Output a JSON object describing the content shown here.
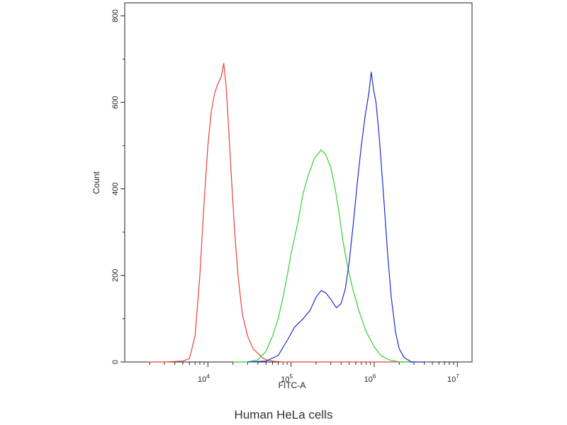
{
  "chart_data": {
    "type": "line",
    "xlabel": "FITC-A",
    "ylabel": "Count",
    "caption": "Human HeLa cells",
    "x_scale": "log",
    "xlim": [
      1000,
      15000000
    ],
    "ylim": [
      0,
      830
    ],
    "x_ticks": [
      {
        "value": 10000,
        "base": "10",
        "exp": "4"
      },
      {
        "value": 100000,
        "base": "10",
        "exp": "5"
      },
      {
        "value": 1000000,
        "base": "10",
        "exp": "6"
      },
      {
        "value": 10000000,
        "base": "10",
        "exp": "7"
      }
    ],
    "y_ticks": [
      "0",
      "200",
      "400",
      "600",
      "800"
    ],
    "series": [
      {
        "color": "#e8403a",
        "points": [
          [
            1900,
            0
          ],
          [
            3000,
            0
          ],
          [
            5000,
            2
          ],
          [
            6000,
            8
          ],
          [
            7000,
            60
          ],
          [
            8000,
            200
          ],
          [
            9000,
            370
          ],
          [
            10000,
            500
          ],
          [
            11000,
            580
          ],
          [
            12000,
            620
          ],
          [
            13000,
            640
          ],
          [
            14500,
            660
          ],
          [
            15500,
            690
          ],
          [
            16500,
            640
          ],
          [
            17500,
            560
          ],
          [
            19000,
            440
          ],
          [
            21000,
            300
          ],
          [
            23000,
            200
          ],
          [
            26000,
            110
          ],
          [
            30000,
            60
          ],
          [
            35000,
            30
          ],
          [
            40000,
            20
          ],
          [
            45000,
            10
          ],
          [
            50000,
            5
          ],
          [
            60000,
            2
          ],
          [
            80000,
            0
          ],
          [
            200000,
            0
          ],
          [
            1000000,
            0
          ],
          [
            3000000,
            0
          ]
        ]
      },
      {
        "color": "#2ed12e",
        "points": [
          [
            20000,
            0
          ],
          [
            30000,
            0
          ],
          [
            40000,
            5
          ],
          [
            50000,
            25
          ],
          [
            60000,
            60
          ],
          [
            70000,
            100
          ],
          [
            80000,
            150
          ],
          [
            90000,
            200
          ],
          [
            100000,
            250
          ],
          [
            120000,
            320
          ],
          [
            140000,
            390
          ],
          [
            160000,
            430
          ],
          [
            190000,
            470
          ],
          [
            230000,
            490
          ],
          [
            260000,
            480
          ],
          [
            300000,
            450
          ],
          [
            340000,
            400
          ],
          [
            380000,
            340
          ],
          [
            420000,
            280
          ],
          [
            480000,
            220
          ],
          [
            550000,
            170
          ],
          [
            650000,
            120
          ],
          [
            800000,
            70
          ],
          [
            1000000,
            35
          ],
          [
            1200000,
            15
          ],
          [
            1500000,
            5
          ],
          [
            2000000,
            0
          ],
          [
            3000000,
            0
          ]
        ]
      },
      {
        "color": "#1f2bd6",
        "points": [
          [
            30000,
            0
          ],
          [
            50000,
            2
          ],
          [
            70000,
            15
          ],
          [
            90000,
            50
          ],
          [
            110000,
            80
          ],
          [
            140000,
            100
          ],
          [
            170000,
            120
          ],
          [
            200000,
            150
          ],
          [
            230000,
            165
          ],
          [
            260000,
            160
          ],
          [
            300000,
            145
          ],
          [
            350000,
            125
          ],
          [
            400000,
            135
          ],
          [
            450000,
            170
          ],
          [
            500000,
            230
          ],
          [
            560000,
            320
          ],
          [
            630000,
            420
          ],
          [
            700000,
            500
          ],
          [
            780000,
            570
          ],
          [
            860000,
            620
          ],
          [
            920000,
            670
          ],
          [
            980000,
            630
          ],
          [
            1050000,
            600
          ],
          [
            1150000,
            520
          ],
          [
            1300000,
            380
          ],
          [
            1450000,
            250
          ],
          [
            1600000,
            150
          ],
          [
            1800000,
            70
          ],
          [
            2000000,
            30
          ],
          [
            2300000,
            10
          ],
          [
            2800000,
            0
          ],
          [
            4000000,
            0
          ]
        ]
      }
    ]
  }
}
